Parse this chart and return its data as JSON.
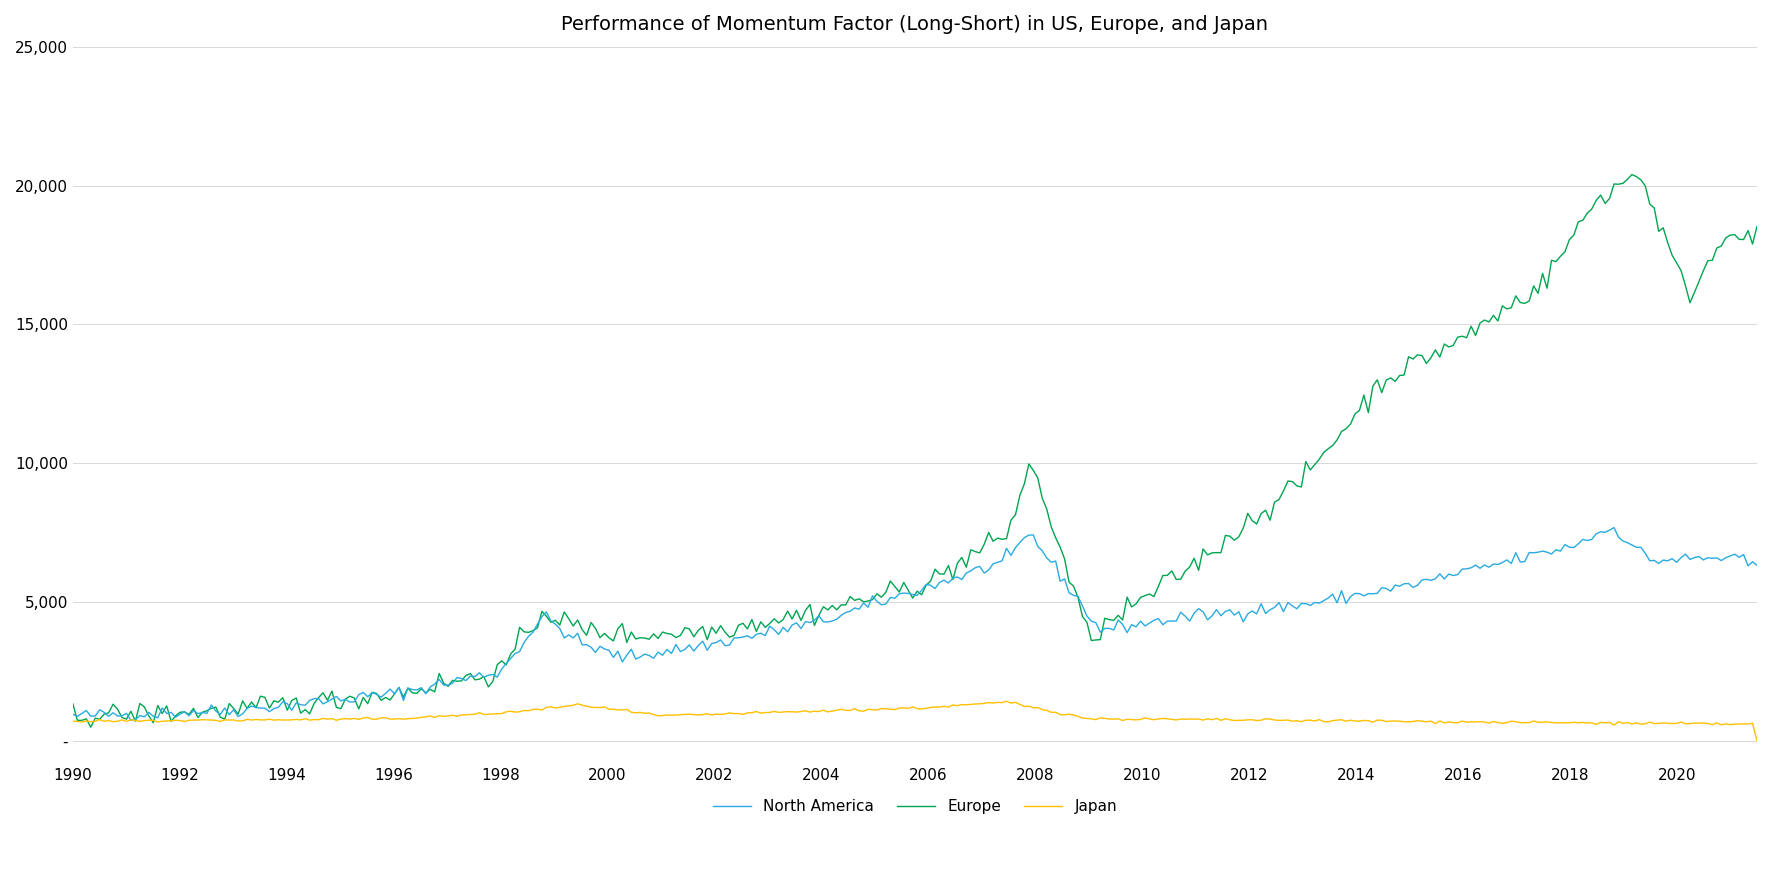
{
  "title": "Performance of Momentum Factor (Long-Short) in US, Europe, and Japan",
  "xlim": [
    1990,
    2021.5
  ],
  "ylim": [
    -800,
    25000
  ],
  "xticks": [
    1990,
    1992,
    1994,
    1996,
    1998,
    2000,
    2002,
    2004,
    2006,
    2008,
    2010,
    2012,
    2014,
    2016,
    2018,
    2020
  ],
  "yticks": [
    0,
    5000,
    10000,
    15000,
    20000,
    25000
  ],
  "ytick_labels": [
    "-",
    "5,000",
    "10,000",
    "15,000",
    "20,000",
    "25,000"
  ],
  "north_america_color": "#29ABE2",
  "europe_color": "#00A550",
  "japan_color": "#FFC000",
  "legend_labels": [
    "North America",
    "Europe",
    "Japan"
  ],
  "background_color": "#FFFFFF",
  "title_fontsize": 14
}
